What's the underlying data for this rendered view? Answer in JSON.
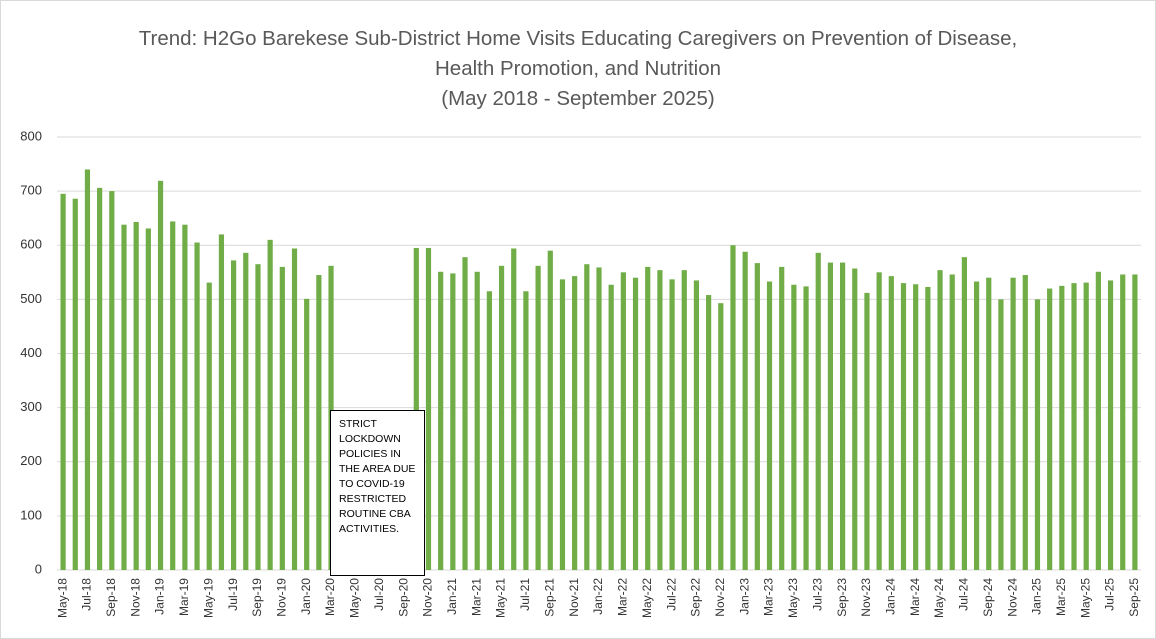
{
  "chart_data": {
    "type": "bar",
    "title": "Trend: H2Go Barekese Sub-District Home Visits Educating Caregivers on Prevention of Disease, Health Promotion, and Nutrition",
    "subtitle": "(May 2018 - September 2025)",
    "annotation": "STRICT LOCKDOWN POLICIES IN THE AREA DUE TO COVID-19 RESTRICTED ROUTINE CBA ACTIVITIES.",
    "color": "#70ad47",
    "grid": true,
    "ylim": [
      0,
      800
    ],
    "yticks": [
      0,
      100,
      200,
      300,
      400,
      500,
      600,
      700,
      800
    ],
    "categories": [
      "May-18",
      null,
      "Jul-18",
      null,
      "Sep-18",
      null,
      "Nov-18",
      null,
      "Jan-19",
      null,
      "Mar-19",
      null,
      "May-19",
      null,
      "Jul-19",
      null,
      "Sep-19",
      null,
      "Nov-19",
      null,
      "Jan-20",
      null,
      "Mar-20",
      null,
      "May-20",
      null,
      "Jul-20",
      null,
      "Sep-20",
      null,
      "Nov-20",
      null,
      "Jan-21",
      null,
      "Mar-21",
      null,
      "May-21",
      null,
      "Jul-21",
      null,
      "Sep-21",
      null,
      "Nov-21",
      null,
      "Jan-22",
      null,
      "Mar-22",
      null,
      "May-22",
      null,
      "Jul-22",
      null,
      "Sep-22",
      null,
      "Nov-22",
      null,
      "Jan-23",
      null,
      "Mar-23",
      null,
      "May-23",
      null,
      "Jul-23",
      null,
      "Sep-23",
      null,
      "Nov-23",
      null,
      "Jan-24",
      null,
      "Mar-24",
      null,
      "May-24",
      null,
      "Jul-24",
      null,
      "Sep-24",
      null,
      "Nov-24",
      null,
      "Jan-25",
      null,
      "Mar-25",
      null,
      "May-25",
      null,
      "Jul-25",
      null,
      "Sep-25"
    ],
    "values": [
      695,
      686,
      740,
      706,
      700,
      638,
      643,
      631,
      719,
      644,
      638,
      605,
      531,
      620,
      572,
      586,
      565,
      610,
      560,
      594,
      501,
      545,
      562,
      null,
      null,
      null,
      null,
      null,
      null,
      595,
      595,
      551,
      548,
      578,
      551,
      515,
      562,
      594,
      515,
      562,
      590,
      537,
      543,
      565,
      559,
      527,
      550,
      540,
      560,
      554,
      537,
      554,
      535,
      508,
      493,
      600,
      588,
      567,
      533,
      560,
      527,
      524,
      586,
      568,
      568,
      557,
      512,
      550,
      543,
      530,
      528,
      523,
      554,
      546,
      578,
      533,
      540,
      500,
      540,
      545,
      500,
      520,
      525,
      530,
      531,
      551,
      535,
      546,
      546
    ]
  }
}
